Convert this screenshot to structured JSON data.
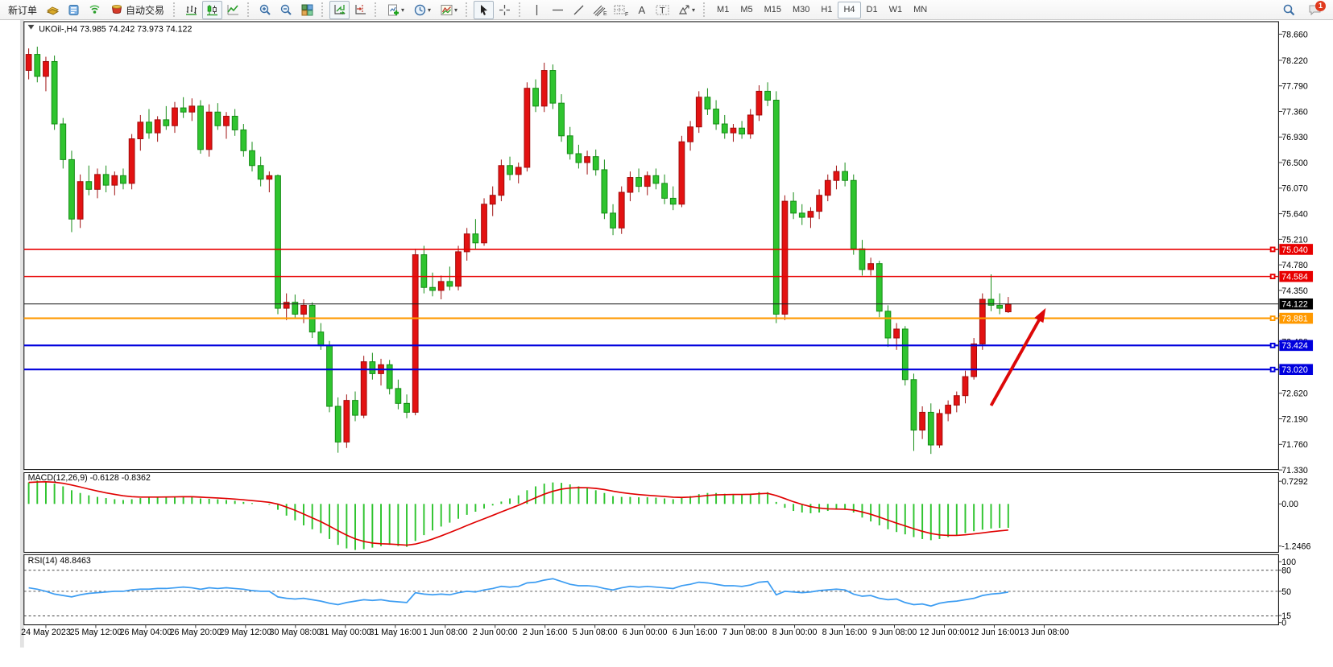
{
  "toolbar": {
    "new_order_label": "新订单",
    "auto_trading_label": "自动交易",
    "timeframes": [
      "M1",
      "M5",
      "M15",
      "M30",
      "H1",
      "H4",
      "D1",
      "W1",
      "MN"
    ],
    "active_timeframe": "H4",
    "notification_count": "1"
  },
  "icons": {
    "dropdown_caret": "▾",
    "text_tool": "A",
    "label_tool": "T",
    "grid_letter": "F",
    "fibo_letter": "E"
  },
  "window": {
    "symbol_title": "UKOil-,H4",
    "quote_string": "73.985 74.242 73.973 74.122"
  },
  "chart_data": {
    "type": "candlestick",
    "symbol": "UKOil-",
    "timeframe": "H4",
    "quote": {
      "open": "73.985",
      "high": "74.242",
      "low": "73.973",
      "close": "74.122"
    },
    "colors": {
      "up_candle": "#e31212",
      "up_stroke": "#9e0b0b",
      "down_candle": "#2fc42f",
      "down_stroke": "#128a12",
      "macd_bar": "#2fc42f",
      "macd_signal": "#e00000",
      "rsi_line": "#3d9df2",
      "arrow": "#dd0808",
      "line_red": "#e80000",
      "line_orange": "#ff9900",
      "line_blue": "#0000dd",
      "line_bid": "#1a1a1a"
    },
    "price_axis_ticks": [
      {
        "label": "78.660",
        "value": 78.66
      },
      {
        "label": "78.220",
        "value": 78.22
      },
      {
        "label": "77.790",
        "value": 77.79
      },
      {
        "label": "77.360",
        "value": 77.36
      },
      {
        "label": "76.930",
        "value": 76.93
      },
      {
        "label": "76.500",
        "value": 76.5
      },
      {
        "label": "76.070",
        "value": 76.07
      },
      {
        "label": "75.640",
        "value": 75.64
      },
      {
        "label": "75.210",
        "value": 75.21
      },
      {
        "label": "74.780",
        "value": 74.78
      },
      {
        "label": "74.350",
        "value": 74.35
      },
      {
        "label": "73.920",
        "value": 73.92
      },
      {
        "label": "73.490",
        "value": 73.49
      },
      {
        "label": "73.060",
        "value": 73.06
      },
      {
        "label": "72.620",
        "value": 72.62
      },
      {
        "label": "72.190",
        "value": 72.19
      },
      {
        "label": "71.760",
        "value": 71.76
      },
      {
        "label": "71.330",
        "value": 71.33
      }
    ],
    "hlines": [
      {
        "label": "75.040",
        "value": 75.04,
        "color": "#e80000",
        "width": 1.6,
        "marker": true
      },
      {
        "label": "74.584",
        "value": 74.584,
        "color": "#e80000",
        "width": 1.6,
        "marker": true
      },
      {
        "label": "73.881",
        "value": 73.881,
        "color": "#ff9900",
        "width": 2.2,
        "marker": true
      },
      {
        "label": "73.424",
        "value": 73.424,
        "color": "#0000dd",
        "width": 2.2,
        "marker": true
      },
      {
        "label": "73.020",
        "value": 73.02,
        "color": "#0000dd",
        "width": 2.2,
        "marker": true
      }
    ],
    "bid_line": {
      "label": "74.122",
      "value": 74.122,
      "color": "#1a1a1a",
      "width": 1
    },
    "candles": [
      [
        78.05,
        78.42,
        77.9,
        78.32
      ],
      [
        78.32,
        78.45,
        77.85,
        77.95
      ],
      [
        77.95,
        78.28,
        77.7,
        78.2
      ],
      [
        78.2,
        78.3,
        77.05,
        77.15
      ],
      [
        77.15,
        77.25,
        76.4,
        76.55
      ],
      [
        76.55,
        76.7,
        75.33,
        75.55
      ],
      [
        75.55,
        76.3,
        75.4,
        76.18
      ],
      [
        76.18,
        76.45,
        75.95,
        76.05
      ],
      [
        76.05,
        76.4,
        75.9,
        76.3
      ],
      [
        76.3,
        76.45,
        76.0,
        76.12
      ],
      [
        76.12,
        76.35,
        75.95,
        76.28
      ],
      [
        76.28,
        76.4,
        76.05,
        76.15
      ],
      [
        76.15,
        76.98,
        76.05,
        76.9
      ],
      [
        76.9,
        77.3,
        76.7,
        77.18
      ],
      [
        77.18,
        77.4,
        76.9,
        77.0
      ],
      [
        77.0,
        77.28,
        76.85,
        77.22
      ],
      [
        77.22,
        77.45,
        77.05,
        77.12
      ],
      [
        77.12,
        77.52,
        77.0,
        77.42
      ],
      [
        77.42,
        77.6,
        77.25,
        77.35
      ],
      [
        77.35,
        77.58,
        77.2,
        77.45
      ],
      [
        77.45,
        77.55,
        76.65,
        76.72
      ],
      [
        76.72,
        77.48,
        76.6,
        77.35
      ],
      [
        77.35,
        77.5,
        77.05,
        77.12
      ],
      [
        77.12,
        77.35,
        76.9,
        77.28
      ],
      [
        77.28,
        77.4,
        76.95,
        77.05
      ],
      [
        77.05,
        77.15,
        76.6,
        76.7
      ],
      [
        76.7,
        76.85,
        76.35,
        76.45
      ],
      [
        76.45,
        76.6,
        76.1,
        76.22
      ],
      [
        76.22,
        76.35,
        76.0,
        76.28
      ],
      [
        76.28,
        76.3,
        73.95,
        74.05
      ],
      [
        74.05,
        74.3,
        73.85,
        74.15
      ],
      [
        74.15,
        74.28,
        73.88,
        73.95
      ],
      [
        73.95,
        74.2,
        73.8,
        74.1
      ],
      [
        74.1,
        74.15,
        73.55,
        73.65
      ],
      [
        73.65,
        73.8,
        73.35,
        73.42
      ],
      [
        73.42,
        73.5,
        72.3,
        72.4
      ],
      [
        72.4,
        72.55,
        71.62,
        71.8
      ],
      [
        71.8,
        72.6,
        71.7,
        72.5
      ],
      [
        72.5,
        72.65,
        72.15,
        72.25
      ],
      [
        72.25,
        73.25,
        72.2,
        73.15
      ],
      [
        73.15,
        73.3,
        72.85,
        72.95
      ],
      [
        72.95,
        73.2,
        72.75,
        73.1
      ],
      [
        73.1,
        73.18,
        72.6,
        72.7
      ],
      [
        72.7,
        72.85,
        72.35,
        72.45
      ],
      [
        72.45,
        72.6,
        72.2,
        72.3
      ],
      [
        72.3,
        75.05,
        72.25,
        74.95
      ],
      [
        74.95,
        75.1,
        74.3,
        74.4
      ],
      [
        74.4,
        74.65,
        74.25,
        74.35
      ],
      [
        74.35,
        74.6,
        74.2,
        74.5
      ],
      [
        74.5,
        74.75,
        74.35,
        74.42
      ],
      [
        74.42,
        75.1,
        74.35,
        75.0
      ],
      [
        75.0,
        75.4,
        74.85,
        75.3
      ],
      [
        75.3,
        75.55,
        75.05,
        75.15
      ],
      [
        75.15,
        75.9,
        75.1,
        75.8
      ],
      [
        75.8,
        76.1,
        75.6,
        75.95
      ],
      [
        75.95,
        76.55,
        75.85,
        76.45
      ],
      [
        76.45,
        76.6,
        76.2,
        76.3
      ],
      [
        76.3,
        76.5,
        76.15,
        76.42
      ],
      [
        76.42,
        77.85,
        76.35,
        77.75
      ],
      [
        77.75,
        77.9,
        77.35,
        77.45
      ],
      [
        77.45,
        78.18,
        77.35,
        78.05
      ],
      [
        78.05,
        78.15,
        77.4,
        77.5
      ],
      [
        77.5,
        77.65,
        76.85,
        76.95
      ],
      [
        76.95,
        77.1,
        76.55,
        76.65
      ],
      [
        76.65,
        76.8,
        76.4,
        76.5
      ],
      [
        76.5,
        76.7,
        76.3,
        76.6
      ],
      [
        76.6,
        76.72,
        76.28,
        76.38
      ],
      [
        76.38,
        76.55,
        75.55,
        75.65
      ],
      [
        75.65,
        75.8,
        75.28,
        75.4
      ],
      [
        75.4,
        76.1,
        75.3,
        76.0
      ],
      [
        76.0,
        76.35,
        75.85,
        76.25
      ],
      [
        76.25,
        76.4,
        76.0,
        76.1
      ],
      [
        76.1,
        76.35,
        75.95,
        76.28
      ],
      [
        76.28,
        76.4,
        76.05,
        76.15
      ],
      [
        76.15,
        76.3,
        75.8,
        75.9
      ],
      [
        75.9,
        76.1,
        75.7,
        75.8
      ],
      [
        75.8,
        76.95,
        75.75,
        76.85
      ],
      [
        76.85,
        77.2,
        76.7,
        77.1
      ],
      [
        77.1,
        77.7,
        77.0,
        77.6
      ],
      [
        77.6,
        77.75,
        77.3,
        77.4
      ],
      [
        77.4,
        77.55,
        77.05,
        77.15
      ],
      [
        77.15,
        77.3,
        76.9,
        77.0
      ],
      [
        77.0,
        77.15,
        76.85,
        77.08
      ],
      [
        77.08,
        77.2,
        76.9,
        76.98
      ],
      [
        76.98,
        77.4,
        76.9,
        77.3
      ],
      [
        77.3,
        77.8,
        77.2,
        77.7
      ],
      [
        77.7,
        77.85,
        77.45,
        77.55
      ],
      [
        77.55,
        77.7,
        73.8,
        73.95
      ],
      [
        73.95,
        75.95,
        73.85,
        75.85
      ],
      [
        75.85,
        76.0,
        75.55,
        75.65
      ],
      [
        75.65,
        75.8,
        75.45,
        75.58
      ],
      [
        75.58,
        75.75,
        75.4,
        75.68
      ],
      [
        75.68,
        76.05,
        75.55,
        75.95
      ],
      [
        75.95,
        76.3,
        75.85,
        76.2
      ],
      [
        76.2,
        76.45,
        76.05,
        76.35
      ],
      [
        76.35,
        76.5,
        76.1,
        76.2
      ],
      [
        76.2,
        76.3,
        74.95,
        75.05
      ],
      [
        75.05,
        75.2,
        74.6,
        74.7
      ],
      [
        74.7,
        74.9,
        74.6,
        74.8
      ],
      [
        74.8,
        74.85,
        73.9,
        74.0
      ],
      [
        74.0,
        74.1,
        73.4,
        73.55
      ],
      [
        73.55,
        73.8,
        73.35,
        73.7
      ],
      [
        73.7,
        73.75,
        72.75,
        72.85
      ],
      [
        72.85,
        72.95,
        71.65,
        72.0
      ],
      [
        72.0,
        72.4,
        71.85,
        72.3
      ],
      [
        72.3,
        72.45,
        71.6,
        71.75
      ],
      [
        71.75,
        72.35,
        71.7,
        72.28
      ],
      [
        72.28,
        72.5,
        72.15,
        72.42
      ],
      [
        72.42,
        72.65,
        72.3,
        72.58
      ],
      [
        72.58,
        73.0,
        72.45,
        72.9
      ],
      [
        72.9,
        73.55,
        72.85,
        73.45
      ],
      [
        73.45,
        74.3,
        73.35,
        74.2
      ],
      [
        74.2,
        74.62,
        74.0,
        74.1
      ],
      [
        74.1,
        74.3,
        73.95,
        74.05
      ],
      [
        73.99,
        74.24,
        73.97,
        74.12
      ]
    ],
    "macd": {
      "label": "MACD(12,26,9)",
      "values": "-0.6128 -0.8362",
      "scale": [
        "0.7292",
        "0.00",
        "-1.2466"
      ],
      "main": [
        0.55,
        0.6,
        0.58,
        0.52,
        0.45,
        0.35,
        0.28,
        0.22,
        0.18,
        0.15,
        0.12,
        0.1,
        0.12,
        0.15,
        0.17,
        0.18,
        0.18,
        0.19,
        0.2,
        0.18,
        0.14,
        0.13,
        0.12,
        0.1,
        0.08,
        0.05,
        0.02,
        0.0,
        -0.02,
        -0.15,
        -0.3,
        -0.42,
        -0.55,
        -0.65,
        -0.75,
        -0.9,
        -1.05,
        -1.14,
        -1.18,
        -1.16,
        -1.12,
        -1.08,
        -1.05,
        -1.08,
        -1.1,
        -0.95,
        -0.8,
        -0.68,
        -0.58,
        -0.48,
        -0.38,
        -0.28,
        -0.2,
        -0.12,
        -0.04,
        0.06,
        0.14,
        0.22,
        0.35,
        0.45,
        0.52,
        0.55,
        0.54,
        0.5,
        0.45,
        0.4,
        0.35,
        0.28,
        0.2,
        0.18,
        0.18,
        0.17,
        0.17,
        0.16,
        0.14,
        0.12,
        0.15,
        0.2,
        0.25,
        0.28,
        0.28,
        0.26,
        0.25,
        0.24,
        0.26,
        0.3,
        0.3,
        0.05,
        -0.1,
        -0.18,
        -0.22,
        -0.24,
        -0.22,
        -0.18,
        -0.15,
        -0.15,
        -0.22,
        -0.35,
        -0.45,
        -0.55,
        -0.65,
        -0.72,
        -0.78,
        -0.85,
        -0.9,
        -0.93,
        -0.9,
        -0.85,
        -0.8,
        -0.75,
        -0.7,
        -0.66,
        -0.63,
        -0.615,
        -0.6128
      ]
    },
    "rsi": {
      "label": "RSI(14)",
      "value": "48.8463",
      "scale": [
        "100",
        "80",
        "50",
        "15",
        "0"
      ],
      "levels": [
        80,
        50,
        15
      ],
      "points": [
        55,
        53,
        50,
        46,
        44,
        42,
        45,
        47,
        48,
        49,
        50,
        50,
        52,
        53,
        53,
        54,
        54,
        55,
        56,
        55,
        53,
        55,
        54,
        55,
        54,
        53,
        51,
        50,
        50,
        42,
        40,
        39,
        40,
        38,
        36,
        33,
        31,
        34,
        36,
        38,
        37,
        38,
        36,
        35,
        34,
        48,
        46,
        45,
        46,
        45,
        48,
        50,
        49,
        52,
        54,
        57,
        56,
        57,
        62,
        63,
        66,
        68,
        64,
        60,
        58,
        58,
        57,
        54,
        52,
        55,
        57,
        56,
        57,
        56,
        55,
        54,
        58,
        60,
        63,
        62,
        60,
        58,
        58,
        57,
        59,
        63,
        64,
        45,
        50,
        49,
        48,
        49,
        51,
        52,
        53,
        52,
        46,
        43,
        44,
        40,
        38,
        39,
        34,
        31,
        32,
        29,
        33,
        35,
        36,
        38,
        40,
        44,
        46,
        47,
        48.85
      ]
    },
    "time_axis": [
      "24 May 2023",
      "25 May 12:00",
      "26 May 04:00",
      "26 May 20:00",
      "29 May 12:00",
      "30 May 08:00",
      "31 May 00:00",
      "31 May 16:00",
      "1 Jun 08:00",
      "2 Jun 00:00",
      "2 Jun 16:00",
      "5 Jun 08:00",
      "6 Jun 00:00",
      "6 Jun 16:00",
      "7 Jun 08:00",
      "8 Jun 00:00",
      "8 Jun 16:00",
      "9 Jun 08:00",
      "12 Jun 00:00",
      "12 Jun 16:00",
      "13 Jun 08:00"
    ],
    "annotation_arrow": {
      "tail": [
        1243,
        519
      ],
      "tip": [
        1313,
        394
      ],
      "color": "#dd0808"
    }
  }
}
